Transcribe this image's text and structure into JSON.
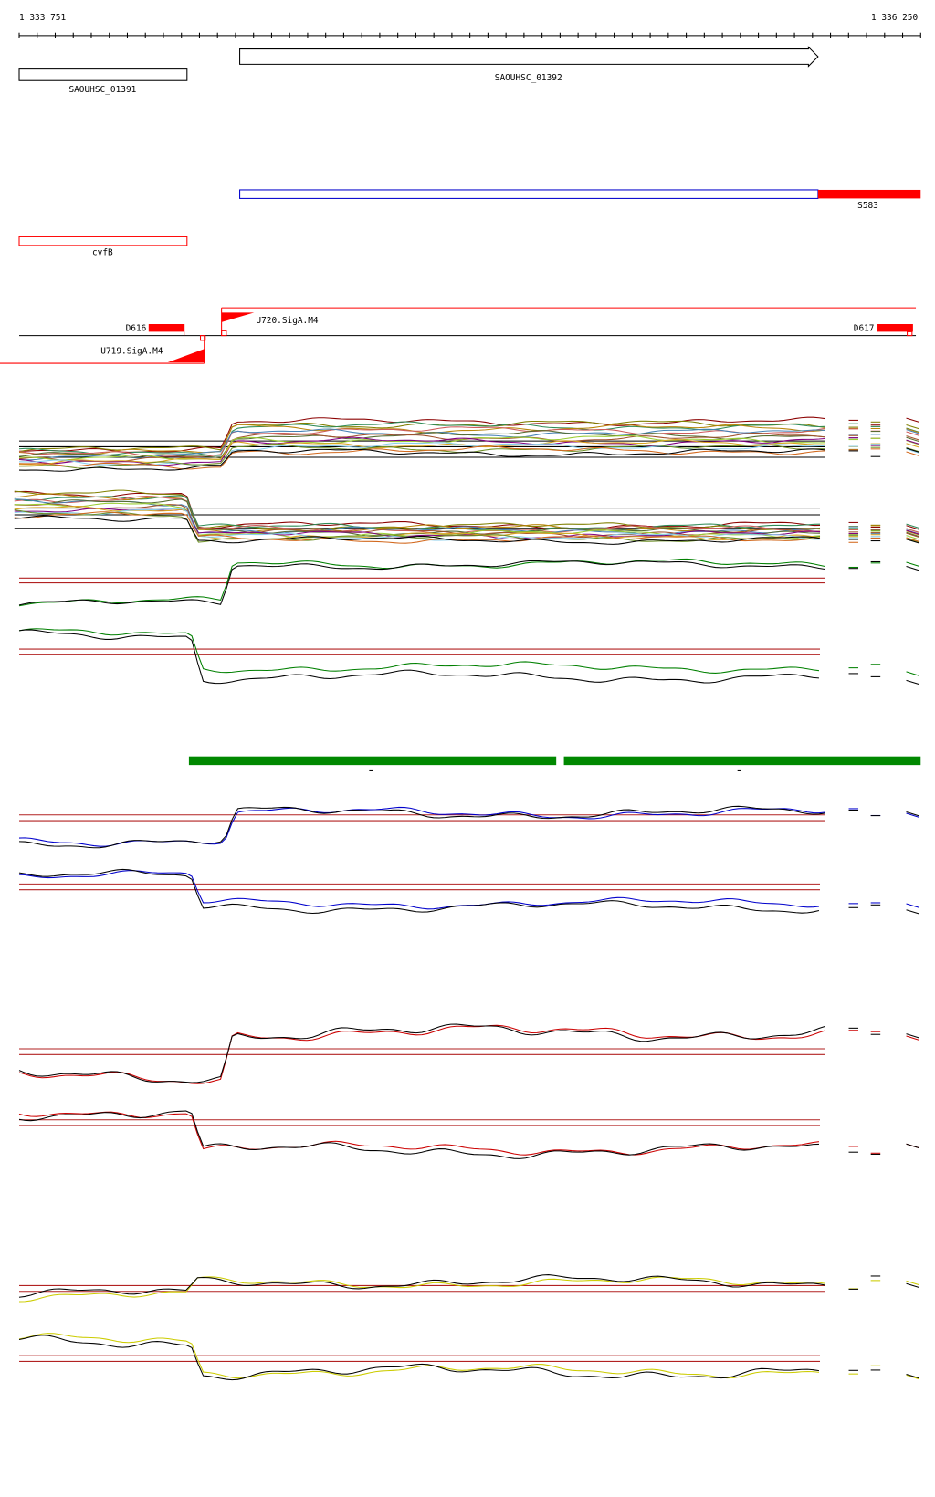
{
  "ruler": {
    "start": "1 333 751",
    "end": "1 336 250"
  },
  "genes": [
    {
      "label": "SAOUHSC_01391"
    },
    {
      "label": "SAOUHSC_01392"
    }
  ],
  "features": [
    {
      "label": "S583"
    },
    {
      "label": "cvfB"
    }
  ],
  "promoters": [
    {
      "label": "D616"
    },
    {
      "label": "U720.SigA.M4"
    },
    {
      "label": "U719.SigA.M4"
    },
    {
      "label": "D617"
    }
  ]
}
